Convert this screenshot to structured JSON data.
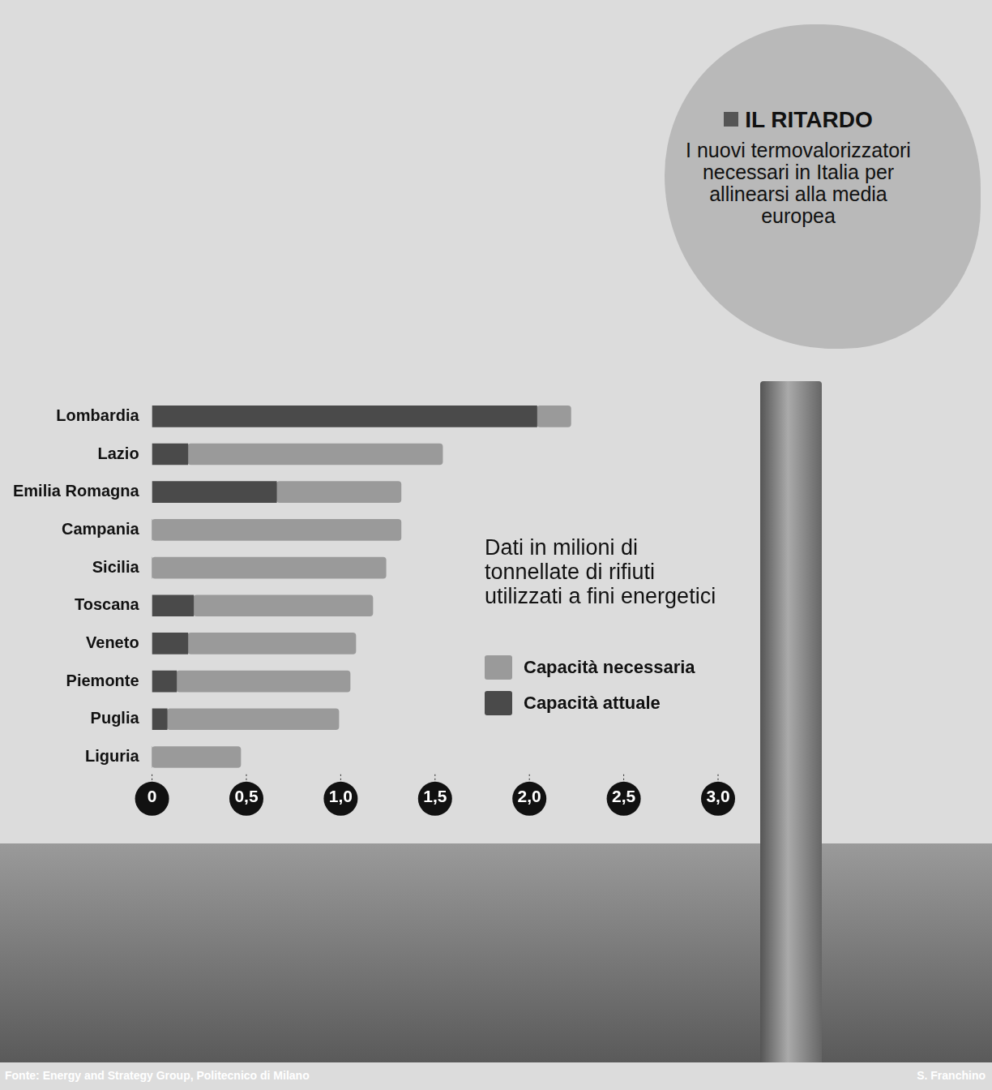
{
  "chart_data": {
    "type": "bar",
    "orientation": "horizontal",
    "stacked": true,
    "title": "IL RITARDO",
    "subtitle": "I nuovi termovalorizzatori necessari in Italia per allinearsi alla media europea",
    "annotations": [
      "Dati in milioni di tonnellate di rifiuti utilizzati a fini energetici"
    ],
    "source": "Fonte: Energy and Strategy Group, Politecnico di Milano",
    "credit": "S. Franchino",
    "categories": [
      "Lombardia",
      "Lazio",
      "Emilia Romagna",
      "Campania",
      "Sicilia",
      "Toscana",
      "Veneto",
      "Piemonte",
      "Puglia",
      "Liguria"
    ],
    "series": [
      {
        "name": "Capacità attuale",
        "color": "#4a4a4a",
        "values": [
          2.04,
          0.19,
          0.66,
          0,
          0,
          0.22,
          0.19,
          0.13,
          0.08,
          0
        ]
      },
      {
        "name": "Capacità necessaria",
        "color": "#9a9a9a",
        "values": [
          0.18,
          1.35,
          0.66,
          1.32,
          1.24,
          0.95,
          0.89,
          0.92,
          0.91,
          0.47
        ]
      }
    ],
    "xlim": [
      0,
      3.0
    ],
    "xticks": [
      0,
      {
        "value": 0.5,
        "label": "0,5"
      },
      {
        "value": 1.0,
        "label": "1,0"
      },
      {
        "value": 1.5,
        "label": "1,5"
      },
      {
        "value": 2.0,
        "label": "2,0"
      },
      {
        "value": 2.5,
        "label": "2,5"
      },
      {
        "value": 3.0,
        "label": "3,0"
      }
    ],
    "grid": false,
    "legend": "right"
  }
}
